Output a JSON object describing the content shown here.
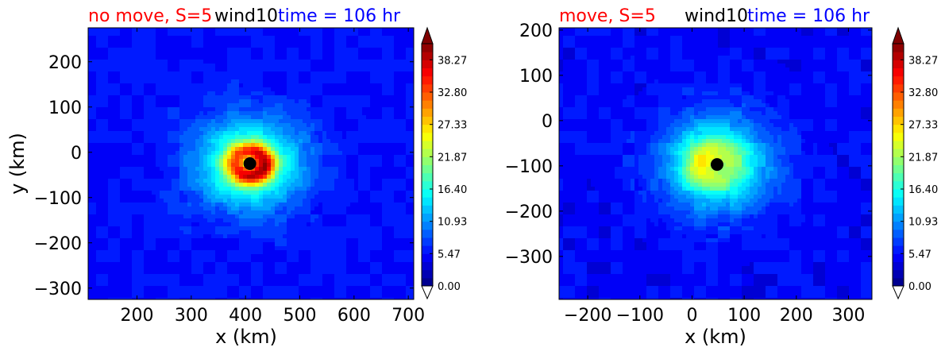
{
  "chart_data": [
    {
      "type": "heatmap",
      "title": {
        "left": "no move, S=5",
        "middle": "wind10",
        "right": "time = 106 hr",
        "left_color": "#ff0000",
        "middle_color": "#000000",
        "right_color": "#0000ff"
      },
      "xlabel": "x (km)",
      "ylabel": "y (km)",
      "xlim": [
        110,
        710
      ],
      "ylim": [
        -325,
        275
      ],
      "xticks": [
        200,
        300,
        400,
        500,
        600,
        700
      ],
      "yticks": [
        200,
        100,
        0,
        -100,
        -200,
        -300
      ],
      "center_marker": {
        "x": 408,
        "y": -25
      },
      "field": {
        "background": 5.5,
        "ring_peak": 35.5,
        "ring_radius_km": 28,
        "ring_width_km": 20,
        "broad_peak": 16.5,
        "broad_radius_km": 95,
        "eye_value": 4
      },
      "colorbar": {
        "min": 0.0,
        "max": 41.0,
        "ticks": [
          "0.00",
          "5.47",
          "10.93",
          "16.40",
          "21.87",
          "27.33",
          "32.80",
          "38.27"
        ],
        "tick_values": [
          0.0,
          5.47,
          10.93,
          16.4,
          21.87,
          27.33,
          32.8,
          38.27
        ],
        "levels": 30,
        "extend": "both",
        "colormap": "jet"
      }
    },
    {
      "type": "heatmap",
      "title": {
        "left": "move, S=5",
        "middle": "wind10",
        "right": "time = 106 hr",
        "left_color": "#ff0000",
        "middle_color": "#000000",
        "right_color": "#0000ff"
      },
      "xlabel": "x (km)",
      "ylabel": "",
      "xlim": [
        -255,
        345
      ],
      "ylim": [
        -395,
        205
      ],
      "xticks": [
        -200,
        -100,
        0,
        100,
        200,
        300
      ],
      "yticks": [
        200,
        100,
        0,
        -100,
        -200,
        -300
      ],
      "center_marker": {
        "x": 48,
        "y": -97
      },
      "field": {
        "background": 5.0,
        "ring_peak": 22,
        "ring_radius_km": 35,
        "ring_width_km": 30,
        "broad_peak": 14,
        "broad_radius_km": 105,
        "eye_value": 3
      },
      "colorbar": {
        "min": 0.0,
        "max": 41.0,
        "ticks": [
          "0.00",
          "5.47",
          "10.93",
          "16.40",
          "21.87",
          "27.33",
          "32.80",
          "38.27"
        ],
        "tick_values": [
          0.0,
          5.47,
          10.93,
          16.4,
          21.87,
          27.33,
          32.8,
          38.27
        ],
        "levels": 30,
        "extend": "both",
        "colormap": "jet"
      }
    }
  ]
}
